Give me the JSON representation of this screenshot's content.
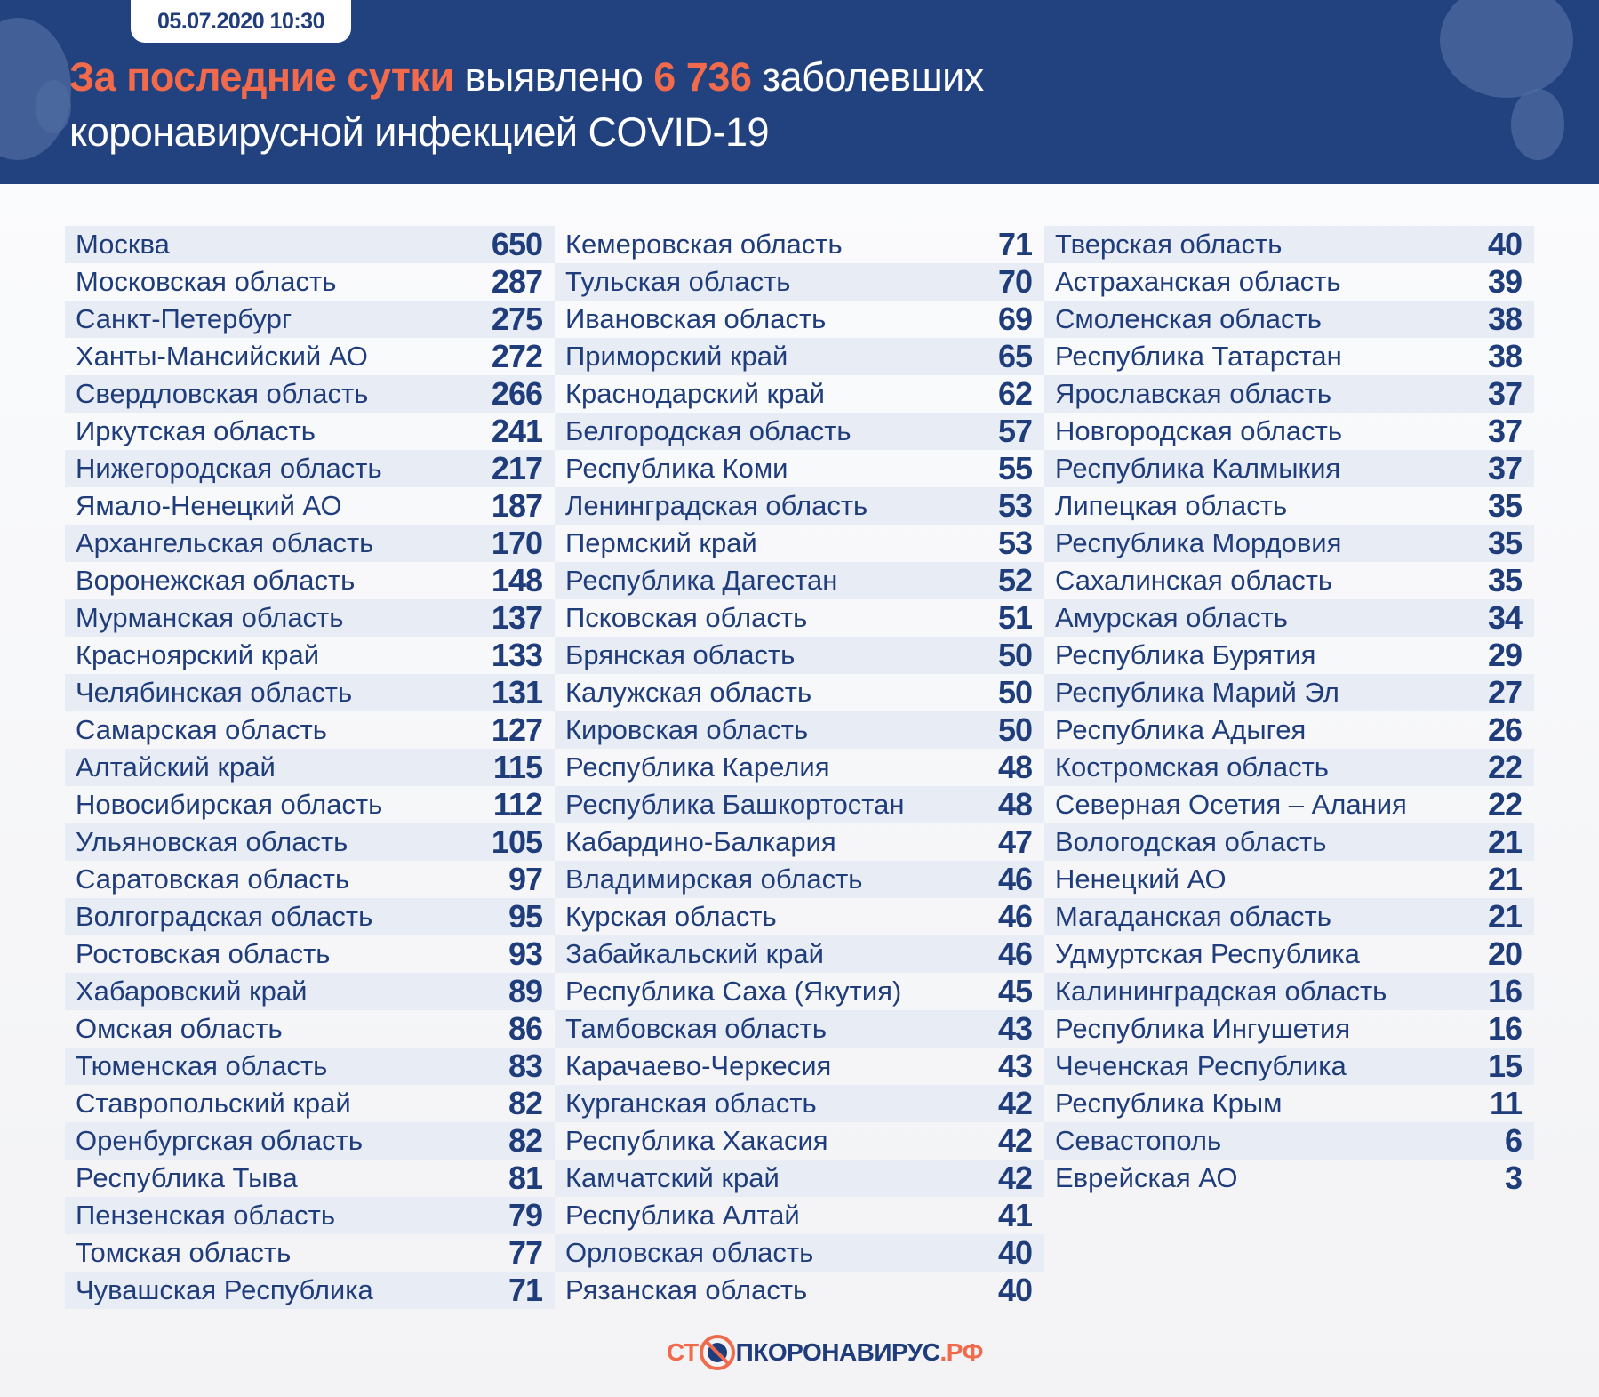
{
  "header": {
    "date": "05.07.2020 10:30",
    "title_accent": "За последние сутки",
    "title_mid": " выявлено ",
    "title_count": "6 736",
    "title_end": " заболевших",
    "title_line2": "коронавирусной инфекцией COVID-19"
  },
  "colors": {
    "header_bg": "#21417f",
    "accent": "#f06a4b",
    "text": "#1f3c7b",
    "row_shade": "#e8ecf5"
  },
  "columns": [
    [
      [
        "Москва",
        "650"
      ],
      [
        "Московская область",
        "287"
      ],
      [
        "Санкт-Петербург",
        "275"
      ],
      [
        "Ханты-Мансийский АО",
        "272"
      ],
      [
        "Свердловская область",
        "266"
      ],
      [
        "Иркутская область",
        "241"
      ],
      [
        "Нижегородская область",
        "217"
      ],
      [
        "Ямало-Ненецкий АО",
        "187"
      ],
      [
        "Архангельская область",
        "170"
      ],
      [
        "Воронежская область",
        "148"
      ],
      [
        "Мурманская область",
        "137"
      ],
      [
        "Красноярский край",
        "133"
      ],
      [
        "Челябинская область",
        "131"
      ],
      [
        "Самарская область",
        "127"
      ],
      [
        "Алтайский край",
        "115"
      ],
      [
        "Новосибирская область",
        "112"
      ],
      [
        "Ульяновская область",
        "105"
      ],
      [
        "Саратовская область",
        "97"
      ],
      [
        "Волгоградская область",
        "95"
      ],
      [
        "Ростовская область",
        "93"
      ],
      [
        "Хабаровский край",
        "89"
      ],
      [
        "Омская область",
        "86"
      ],
      [
        "Тюменская область",
        "83"
      ],
      [
        "Ставропольский край",
        "82"
      ],
      [
        "Оренбургская область",
        "82"
      ],
      [
        "Республика Тыва",
        "81"
      ],
      [
        "Пензенская область",
        "79"
      ],
      [
        "Томская область",
        "77"
      ],
      [
        "Чувашская Республика",
        "71"
      ]
    ],
    [
      [
        "Кемеровская область",
        "71"
      ],
      [
        "Тульская область",
        "70"
      ],
      [
        "Ивановская область",
        "69"
      ],
      [
        "Приморский край",
        "65"
      ],
      [
        "Краснодарский край",
        "62"
      ],
      [
        "Белгородская область",
        "57"
      ],
      [
        "Республика Коми",
        "55"
      ],
      [
        "Ленинградская область",
        "53"
      ],
      [
        "Пермский край",
        "53"
      ],
      [
        "Республика Дагестан",
        "52"
      ],
      [
        "Псковская область",
        "51"
      ],
      [
        "Брянская область",
        "50"
      ],
      [
        "Калужская область",
        "50"
      ],
      [
        "Кировская область",
        "50"
      ],
      [
        "Республика Карелия",
        "48"
      ],
      [
        "Республика Башкортостан",
        "48"
      ],
      [
        "Кабардино-Балкария",
        "47"
      ],
      [
        "Владимирская область",
        "46"
      ],
      [
        "Курская область",
        "46"
      ],
      [
        "Забайкальский край",
        "46"
      ],
      [
        "Республика Саха (Якутия)",
        "45"
      ],
      [
        "Тамбовская область",
        "43"
      ],
      [
        "Карачаево-Черкесия",
        "43"
      ],
      [
        "Курганская область",
        "42"
      ],
      [
        "Республика Хакасия",
        "42"
      ],
      [
        "Камчатский край",
        "42"
      ],
      [
        "Республика Алтай",
        "41"
      ],
      [
        "Орловская область",
        "40"
      ],
      [
        "Рязанская область",
        "40"
      ]
    ],
    [
      [
        "Тверская область",
        "40"
      ],
      [
        "Астраханская область",
        "39"
      ],
      [
        "Смоленская область",
        "38"
      ],
      [
        "Республика Татарстан",
        "38"
      ],
      [
        "Ярославская область",
        "37"
      ],
      [
        "Новгородская область",
        "37"
      ],
      [
        "Республика Калмыкия",
        "37"
      ],
      [
        "Липецкая область",
        "35"
      ],
      [
        "Республика Мордовия",
        "35"
      ],
      [
        "Сахалинская область",
        "35"
      ],
      [
        "Амурская область",
        "34"
      ],
      [
        "Республика Бурятия",
        "29"
      ],
      [
        "Республика Марий Эл",
        "27"
      ],
      [
        "Республика Адыгея",
        "26"
      ],
      [
        "Костромская область",
        "22"
      ],
      [
        "Северная Осетия – Алания",
        "22"
      ],
      [
        "Вологодская область",
        "21"
      ],
      [
        "Ненецкий АО",
        "21"
      ],
      [
        "Магаданская область",
        "21"
      ],
      [
        "Удмуртская Республика",
        "20"
      ],
      [
        "Калининградская область",
        "16"
      ],
      [
        "Республика Ингушетия",
        "16"
      ],
      [
        "Чеченская Республика",
        "15"
      ],
      [
        "Республика Крым",
        "11"
      ],
      [
        "Севастополь",
        "6"
      ],
      [
        "Еврейская АО",
        "3"
      ]
    ]
  ],
  "footer": {
    "logo_text": "СТОПКОРОНАВИРУС.РФ",
    "logo_a": "СТ",
    "logo_b": "ПКОРОНАВИРУС",
    "logo_c": ".РФ"
  }
}
